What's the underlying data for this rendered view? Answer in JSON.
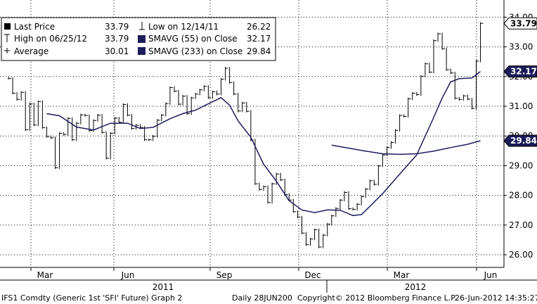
{
  "chart_data": {
    "type": "bar",
    "style": "high-low-close bars with moving averages",
    "title": "",
    "ylim": [
      25.6,
      24.0
    ],
    "yticks": [
      26.0,
      27.0,
      28.0,
      29.0,
      30.0,
      31.0,
      32.0,
      33.0,
      34.0
    ],
    "ytick_labels": [
      "26.00",
      "27.00",
      "28.00",
      "29.00",
      "30.00",
      "31.00",
      "32.00",
      "33.00",
      "34.00"
    ],
    "xaxis": {
      "months": [
        {
          "label": "Mar",
          "date": "2011-03"
        },
        {
          "label": "Jun",
          "date": "2011-06"
        },
        {
          "label": "Sep",
          "date": "2011-09"
        },
        {
          "label": "Dec",
          "date": "2011-12"
        },
        {
          "label": "Mar",
          "date": "2012-03"
        },
        {
          "label": "Jun",
          "date": "2012-06"
        }
      ],
      "years": [
        "2011",
        "2012"
      ]
    },
    "legend": [
      {
        "label": "Last Price",
        "value": "33.79",
        "marker": "filled-square"
      },
      {
        "label": "High on 06/25/12",
        "value": "33.79",
        "marker": "high-bar"
      },
      {
        "label": "Average",
        "value": "30.01",
        "marker": "average-line"
      },
      {
        "label": "Low on 12/14/11",
        "value": "26.22",
        "marker": "low-bar"
      },
      {
        "label": "SMAVG (55) on Close",
        "value": "32.17",
        "marker": "navy-square"
      },
      {
        "label": "SMAVG (233) on Close",
        "value": "29.84",
        "marker": "navy-square"
      }
    ],
    "value_tags": [
      {
        "value": "33.79",
        "style": "white"
      },
      {
        "value": "32.17",
        "style": "navy"
      },
      {
        "value": "29.84",
        "style": "navy"
      }
    ],
    "series": [
      {
        "name": "Last Price",
        "style": "hlc-bars",
        "points": [
          [
            0.0,
            31.94
          ],
          [
            0.5,
            31.44
          ],
          [
            1.0,
            31.23
          ],
          [
            1.5,
            31.47
          ],
          [
            2.0,
            30.21
          ],
          [
            2.5,
            31.08
          ],
          [
            3.0,
            30.37
          ],
          [
            3.5,
            31.16
          ],
          [
            4.0,
            30.28
          ],
          [
            4.5,
            29.98
          ],
          [
            5.0,
            29.94
          ],
          [
            5.5,
            28.93
          ],
          [
            6.0,
            30.09
          ],
          [
            6.5,
            30.05
          ],
          [
            7.0,
            30.59
          ],
          [
            7.5,
            29.87
          ],
          [
            8.0,
            30.43
          ],
          [
            8.5,
            30.71
          ],
          [
            9.0,
            30.69
          ],
          [
            9.5,
            30.18
          ],
          [
            10.0,
            30.52
          ],
          [
            10.5,
            30.7
          ],
          [
            11.0,
            30.12
          ],
          [
            11.5,
            29.25
          ],
          [
            12.0,
            30.09
          ],
          [
            12.5,
            30.6
          ],
          [
            13.0,
            30.46
          ],
          [
            13.5,
            31.06
          ],
          [
            14.0,
            30.7
          ],
          [
            14.5,
            30.25
          ],
          [
            15.0,
            30.36
          ],
          [
            15.5,
            30.29
          ],
          [
            16.0,
            29.87
          ],
          [
            16.5,
            29.87
          ],
          [
            17.0,
            29.99
          ],
          [
            17.5,
            30.53
          ],
          [
            18.0,
            30.7
          ],
          [
            18.5,
            31.09
          ],
          [
            19.0,
            31.63
          ],
          [
            19.5,
            31.51
          ],
          [
            20.0,
            31.07
          ],
          [
            20.5,
            31.34
          ],
          [
            21.0,
            30.75
          ],
          [
            21.5,
            31.28
          ],
          [
            22.0,
            31.41
          ],
          [
            22.5,
            31.55
          ],
          [
            23.0,
            31.67
          ],
          [
            23.5,
            31.29
          ],
          [
            24.0,
            31.49
          ],
          [
            24.5,
            31.41
          ],
          [
            25.0,
            31.91
          ],
          [
            25.5,
            32.28
          ],
          [
            26.0,
            31.8
          ],
          [
            26.5,
            31.41
          ],
          [
            27.0,
            30.84
          ],
          [
            27.5,
            31.11
          ],
          [
            28.0,
            30.83
          ],
          [
            28.5,
            29.86
          ],
          [
            29.0,
            28.39
          ],
          [
            29.5,
            28.2
          ],
          [
            30.0,
            28.29
          ],
          [
            30.5,
            27.76
          ],
          [
            31.0,
            28.39
          ],
          [
            31.5,
            28.72
          ],
          [
            32.0,
            28.52
          ],
          [
            32.5,
            28.03
          ],
          [
            33.0,
            27.84
          ],
          [
            33.5,
            27.45
          ],
          [
            34.0,
            27.27
          ],
          [
            34.5,
            26.73
          ],
          [
            35.0,
            26.34
          ],
          [
            35.5,
            26.53
          ],
          [
            36.0,
            26.84
          ],
          [
            36.5,
            26.26
          ],
          [
            37.0,
            26.66
          ],
          [
            37.5,
            27.03
          ],
          [
            38.0,
            27.31
          ],
          [
            38.5,
            27.56
          ],
          [
            39.0,
            27.84
          ],
          [
            39.5,
            28.1
          ],
          [
            40.0,
            27.55
          ],
          [
            40.5,
            27.53
          ],
          [
            41.0,
            27.7
          ],
          [
            41.5,
            27.96
          ],
          [
            42.0,
            28.21
          ],
          [
            42.5,
            28.49
          ],
          [
            43.0,
            28.37
          ],
          [
            43.5,
            28.99
          ],
          [
            44.0,
            29.36
          ],
          [
            44.5,
            29.61
          ],
          [
            45.0,
            29.78
          ],
          [
            45.5,
            30.19
          ],
          [
            46.0,
            30.69
          ],
          [
            46.5,
            30.66
          ],
          [
            47.0,
            31.25
          ],
          [
            47.5,
            31.44
          ],
          [
            48.0,
            31.39
          ],
          [
            48.5,
            32.01
          ],
          [
            49.0,
            32.43
          ],
          [
            49.5,
            32.15
          ],
          [
            50.0,
            33.21
          ],
          [
            50.5,
            33.44
          ],
          [
            51.0,
            32.94
          ],
          [
            51.5,
            32.23
          ],
          [
            52.0,
            32.12
          ],
          [
            52.5,
            31.27
          ],
          [
            53.0,
            31.23
          ],
          [
            53.5,
            31.35
          ],
          [
            54.0,
            31.24
          ],
          [
            54.5,
            30.93
          ],
          [
            55.0,
            32.52
          ],
          [
            55.5,
            33.79
          ]
        ]
      },
      {
        "name": "SMAVG (55) on Close",
        "style": "line",
        "points": [
          [
            4.5,
            30.75
          ],
          [
            6.0,
            30.68
          ],
          [
            8.0,
            30.3
          ],
          [
            10.0,
            30.2
          ],
          [
            12.0,
            30.43
          ],
          [
            14.0,
            30.43
          ],
          [
            15.5,
            30.25
          ],
          [
            17.0,
            30.29
          ],
          [
            19.0,
            30.58
          ],
          [
            20.5,
            30.75
          ],
          [
            22.0,
            30.87
          ],
          [
            23.5,
            31.08
          ],
          [
            25.0,
            31.29
          ],
          [
            26.0,
            31.04
          ],
          [
            27.0,
            30.51
          ],
          [
            28.5,
            29.96
          ],
          [
            30.0,
            29.05
          ],
          [
            31.5,
            28.48
          ],
          [
            33.0,
            27.82
          ],
          [
            34.5,
            27.51
          ],
          [
            36.0,
            27.42
          ],
          [
            37.5,
            27.51
          ],
          [
            39.0,
            27.5
          ],
          [
            40.5,
            27.32
          ],
          [
            41.5,
            27.35
          ],
          [
            42.5,
            27.63
          ],
          [
            44.0,
            28.06
          ],
          [
            45.5,
            28.55
          ],
          [
            47.0,
            29.04
          ],
          [
            48.0,
            29.36
          ],
          [
            49.0,
            29.99
          ],
          [
            50.0,
            30.62
          ],
          [
            51.0,
            31.28
          ],
          [
            52.0,
            31.82
          ],
          [
            53.0,
            31.93
          ],
          [
            54.5,
            31.95
          ],
          [
            55.5,
            32.17
          ]
        ]
      },
      {
        "name": "SMAVG (233) on Close",
        "style": "line",
        "points": [
          [
            38.0,
            29.69
          ],
          [
            40.0,
            29.59
          ],
          [
            42.0,
            29.49
          ],
          [
            44.0,
            29.4
          ],
          [
            46.0,
            29.38
          ],
          [
            48.0,
            29.4
          ],
          [
            50.0,
            29.49
          ],
          [
            52.0,
            29.61
          ],
          [
            54.0,
            29.72
          ],
          [
            55.5,
            29.84
          ]
        ]
      }
    ]
  },
  "footer": {
    "left": "IFS1 Comdty (Generic 1st 'SFI' Future) Graph 2",
    "center": "Daily 28JUN200",
    "copyright": "Copyright© 2012 Bloomberg Finance L.P.",
    "timestamp": "26-Jun-2012 14:35:27"
  },
  "colors": {
    "bars": "#000000",
    "moving_average": "#1c1c5c",
    "tag_navy": "#1a1a5a",
    "grid": "#000000"
  }
}
